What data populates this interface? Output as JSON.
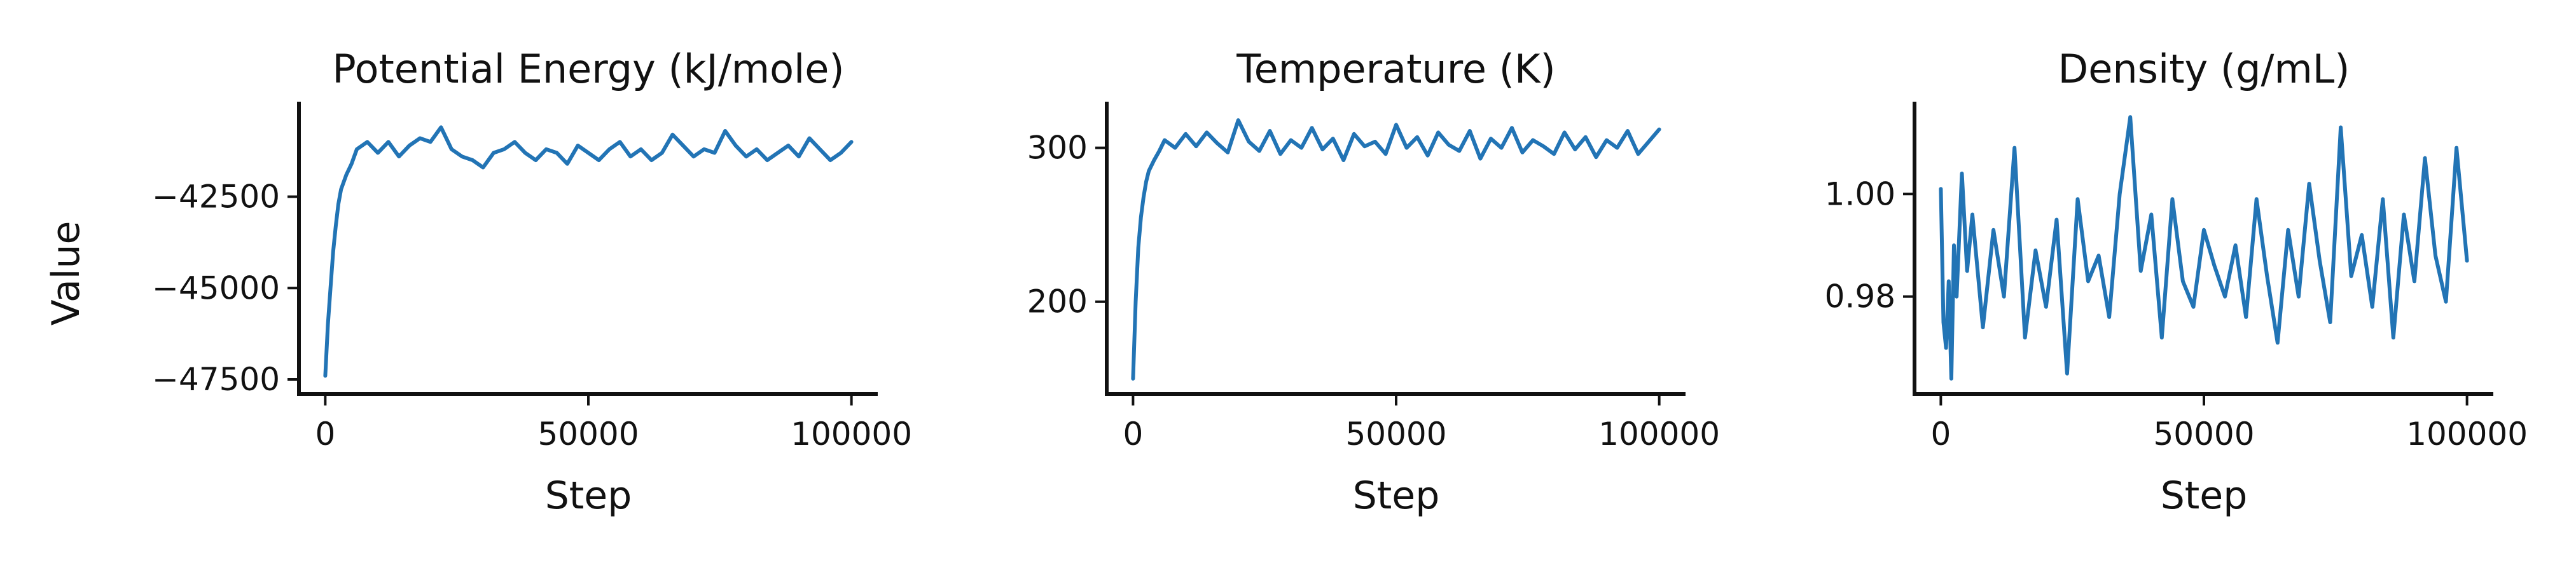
{
  "figure": {
    "ylabel": "Value",
    "xlabel": "Step",
    "line_color": "#2274b5"
  },
  "chart_data": [
    {
      "type": "line",
      "title": "Potential Energy (kJ/mole)",
      "xlabel": "Step",
      "ylabel": "Value",
      "xlim": [
        -5000,
        105000
      ],
      "ylim": [
        -47900,
        -39900
      ],
      "x_ticks": [
        0,
        50000,
        100000
      ],
      "x_tick_labels": [
        "0",
        "50000",
        "100000"
      ],
      "y_ticks": [
        -47500,
        -45000,
        -42500
      ],
      "y_tick_labels": [
        "−47500",
        "−45000",
        "−42500"
      ],
      "grid": false,
      "series": [
        {
          "color": "#2274b5",
          "x": [
            0,
            500,
            1000,
            1500,
            2000,
            2500,
            3000,
            4000,
            5000,
            6000,
            8000,
            10000,
            12000,
            14000,
            16000,
            18000,
            20000,
            22000,
            24000,
            26000,
            28000,
            30000,
            32000,
            34000,
            36000,
            38000,
            40000,
            42000,
            44000,
            46000,
            48000,
            50000,
            52000,
            54000,
            56000,
            58000,
            60000,
            62000,
            64000,
            66000,
            68000,
            70000,
            72000,
            74000,
            76000,
            78000,
            80000,
            82000,
            84000,
            86000,
            88000,
            90000,
            92000,
            94000,
            96000,
            98000,
            100000
          ],
          "y": [
            -47400,
            -46000,
            -45000,
            -44000,
            -43300,
            -42700,
            -42300,
            -41900,
            -41600,
            -41200,
            -41000,
            -41300,
            -41000,
            -41400,
            -41100,
            -40900,
            -41000,
            -40600,
            -41200,
            -41400,
            -41500,
            -41700,
            -41300,
            -41200,
            -41000,
            -41300,
            -41500,
            -41200,
            -41300,
            -41600,
            -41100,
            -41300,
            -41500,
            -41200,
            -41000,
            -41400,
            -41200,
            -41500,
            -41300,
            -40800,
            -41100,
            -41400,
            -41200,
            -41300,
            -40700,
            -41100,
            -41400,
            -41200,
            -41500,
            -41300,
            -41100,
            -41400,
            -40900,
            -41200,
            -41500,
            -41300,
            -41000
          ]
        }
      ]
    },
    {
      "type": "line",
      "title": "Temperature (K)",
      "xlabel": "Step",
      "ylabel": "",
      "xlim": [
        -5000,
        105000
      ],
      "ylim": [
        140,
        330
      ],
      "x_ticks": [
        0,
        50000,
        100000
      ],
      "x_tick_labels": [
        "0",
        "50000",
        "100000"
      ],
      "y_ticks": [
        200,
        300
      ],
      "y_tick_labels": [
        "200",
        "300"
      ],
      "grid": false,
      "series": [
        {
          "color": "#2274b5",
          "x": [
            0,
            500,
            1000,
            1500,
            2000,
            2500,
            3000,
            4000,
            5000,
            6000,
            8000,
            10000,
            12000,
            14000,
            16000,
            18000,
            20000,
            22000,
            24000,
            26000,
            28000,
            30000,
            32000,
            34000,
            36000,
            38000,
            40000,
            42000,
            44000,
            46000,
            48000,
            50000,
            52000,
            54000,
            56000,
            58000,
            60000,
            62000,
            64000,
            66000,
            68000,
            70000,
            72000,
            74000,
            76000,
            78000,
            80000,
            82000,
            84000,
            86000,
            88000,
            90000,
            92000,
            94000,
            96000,
            98000,
            100000
          ],
          "y": [
            150,
            200,
            235,
            255,
            268,
            278,
            285,
            292,
            298,
            305,
            300,
            309,
            301,
            310,
            303,
            297,
            318,
            304,
            298,
            311,
            296,
            305,
            300,
            313,
            299,
            306,
            292,
            309,
            301,
            304,
            296,
            315,
            300,
            307,
            295,
            310,
            302,
            298,
            311,
            293,
            306,
            300,
            313,
            297,
            305,
            301,
            296,
            310,
            299,
            307,
            294,
            305,
            300,
            311,
            296,
            304,
            312
          ]
        }
      ]
    },
    {
      "type": "line",
      "title": "Density (g/mL)",
      "xlabel": "Step",
      "ylabel": "",
      "xlim": [
        -5000,
        105000
      ],
      "ylim": [
        0.961,
        1.018
      ],
      "x_ticks": [
        0,
        50000,
        100000
      ],
      "x_tick_labels": [
        "0",
        "50000",
        "100000"
      ],
      "y_ticks": [
        0.98,
        1.0
      ],
      "y_tick_labels": [
        "0.98",
        "1.00"
      ],
      "grid": false,
      "series": [
        {
          "color": "#2274b5",
          "x": [
            0,
            500,
            1000,
            1500,
            2000,
            2500,
            3000,
            4000,
            5000,
            6000,
            8000,
            10000,
            12000,
            14000,
            16000,
            18000,
            20000,
            22000,
            24000,
            26000,
            28000,
            30000,
            32000,
            34000,
            36000,
            38000,
            40000,
            42000,
            44000,
            46000,
            48000,
            50000,
            52000,
            54000,
            56000,
            58000,
            60000,
            62000,
            64000,
            66000,
            68000,
            70000,
            72000,
            74000,
            76000,
            78000,
            80000,
            82000,
            84000,
            86000,
            88000,
            90000,
            92000,
            94000,
            96000,
            98000,
            100000
          ],
          "y": [
            1.001,
            0.975,
            0.97,
            0.983,
            0.964,
            0.99,
            0.98,
            1.004,
            0.985,
            0.996,
            0.974,
            0.993,
            0.98,
            1.009,
            0.972,
            0.989,
            0.978,
            0.995,
            0.965,
            0.999,
            0.983,
            0.988,
            0.976,
            1.0,
            1.015,
            0.985,
            0.996,
            0.972,
            0.999,
            0.983,
            0.978,
            0.993,
            0.986,
            0.98,
            0.99,
            0.976,
            0.999,
            0.984,
            0.971,
            0.993,
            0.98,
            1.002,
            0.987,
            0.975,
            1.013,
            0.984,
            0.992,
            0.978,
            0.999,
            0.972,
            0.996,
            0.983,
            1.007,
            0.988,
            0.979,
            1.009,
            0.987
          ]
        }
      ]
    }
  ]
}
